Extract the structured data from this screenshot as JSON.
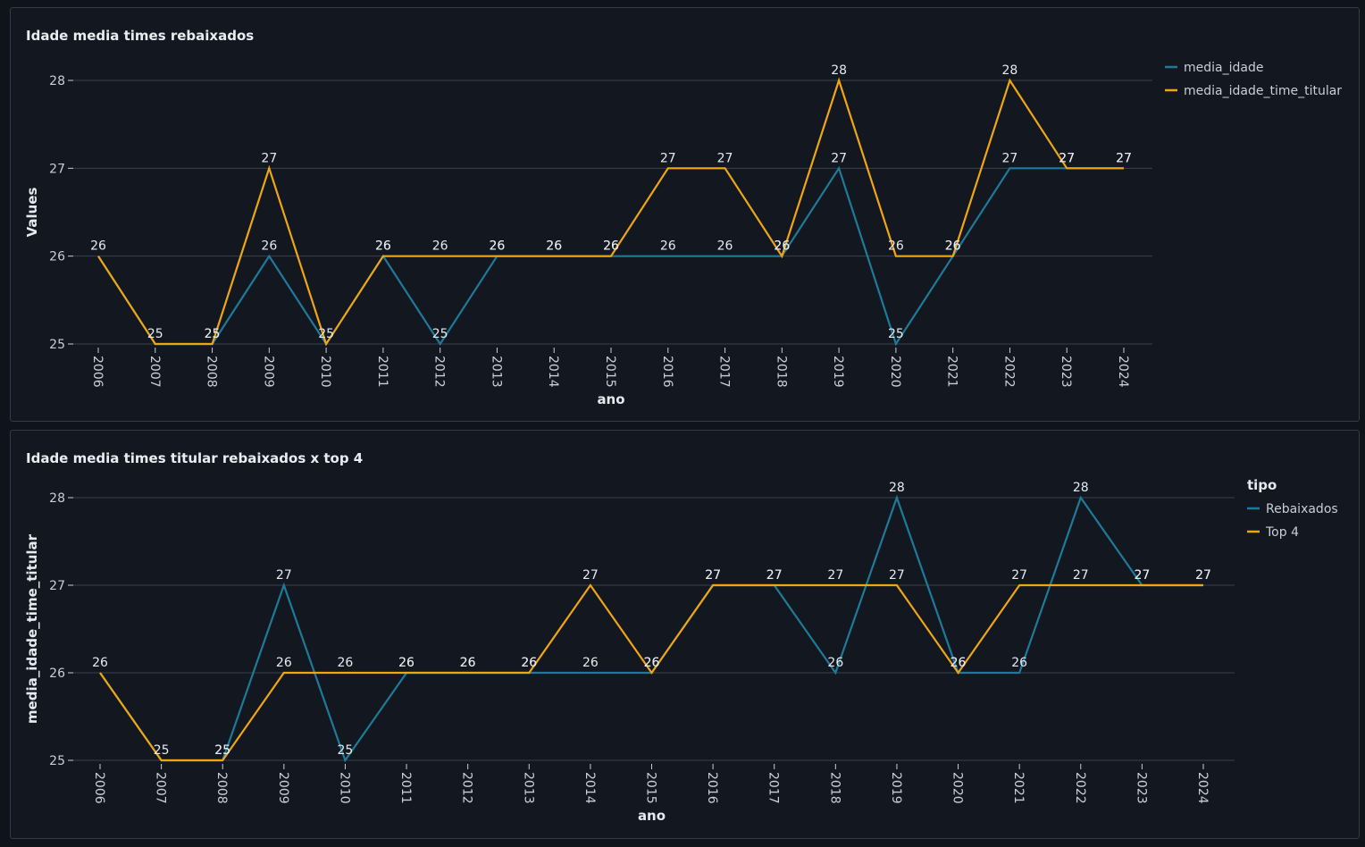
{
  "colors": {
    "series_blue": "#1f7a9a",
    "series_orange": "#f0a70f",
    "grid": "#3a404a",
    "axis_text": "#c9ced6",
    "label_text": "#e6e9ee"
  },
  "chart_data": [
    {
      "type": "line",
      "title": "Idade media times rebaixados",
      "xlabel": "ano",
      "ylabel": "Values",
      "legend_title": "",
      "legend_position": "top-right",
      "ylim": [
        25,
        28
      ],
      "yticks": [
        25,
        26,
        27,
        28
      ],
      "grid": true,
      "categories": [
        "2006",
        "2007",
        "2008",
        "2009",
        "2010",
        "2011",
        "2012",
        "2013",
        "2014",
        "2015",
        "2016",
        "2017",
        "2018",
        "2019",
        "2020",
        "2021",
        "2022",
        "2023",
        "2024"
      ],
      "series": [
        {
          "name": "media_idade",
          "color": "#1f7a9a",
          "values": [
            26,
            25,
            25,
            26,
            25,
            26,
            25,
            26,
            26,
            26,
            26,
            26,
            26,
            27,
            25,
            26,
            27,
            27,
            27
          ],
          "labels": [
            null,
            null,
            "25",
            "26",
            null,
            "26",
            "25",
            "26",
            "26",
            "26",
            "26",
            "26",
            "26",
            "27",
            "25",
            "26",
            "27",
            "27",
            "27"
          ]
        },
        {
          "name": "media_idade_time_titular",
          "color": "#f0a70f",
          "values": [
            26,
            25,
            25,
            27,
            25,
            26,
            26,
            26,
            26,
            26,
            27,
            27,
            26,
            28,
            26,
            26,
            28,
            27,
            27
          ],
          "labels": [
            "26",
            "25",
            "25",
            "27",
            "25",
            "26",
            "26",
            "26",
            "26",
            "26",
            "27",
            "27",
            "26",
            "28",
            "26",
            "26",
            "28",
            "27",
            "27"
          ]
        }
      ]
    },
    {
      "type": "line",
      "title": "Idade media times titular rebaixados x top 4",
      "xlabel": "ano",
      "ylabel": "media_idade_time_titular",
      "legend_title": "tipo",
      "legend_position": "top-right",
      "ylim": [
        25,
        28
      ],
      "yticks": [
        25,
        26,
        27,
        28
      ],
      "grid": true,
      "categories": [
        "2006",
        "2007",
        "2008",
        "2009",
        "2010",
        "2011",
        "2012",
        "2013",
        "2014",
        "2015",
        "2016",
        "2017",
        "2018",
        "2019",
        "2020",
        "2021",
        "2022",
        "2023",
        "2024"
      ],
      "series": [
        {
          "name": "Rebaixados",
          "color": "#1f7a9a",
          "values": [
            26,
            25,
            25,
            27,
            25,
            26,
            26,
            26,
            26,
            26,
            27,
            27,
            26,
            28,
            26,
            26,
            28,
            27,
            27
          ],
          "labels": [
            null,
            null,
            "25",
            "27",
            "25",
            "26",
            "26",
            "26",
            "26",
            "26",
            "27",
            "27",
            "26",
            "28",
            "26",
            "26",
            "28",
            "27",
            "27"
          ]
        },
        {
          "name": "Top 4",
          "color": "#f0a70f",
          "values": [
            26,
            25,
            25,
            26,
            26,
            26,
            26,
            26,
            27,
            26,
            27,
            27,
            27,
            27,
            26,
            27,
            27,
            27,
            27
          ],
          "labels": [
            "26",
            "25",
            "25",
            "26",
            "26",
            "26",
            "26",
            "26",
            "27",
            "26",
            "27",
            "27",
            "27",
            "27",
            "26",
            "27",
            "27",
            "27",
            "27"
          ]
        }
      ]
    }
  ]
}
